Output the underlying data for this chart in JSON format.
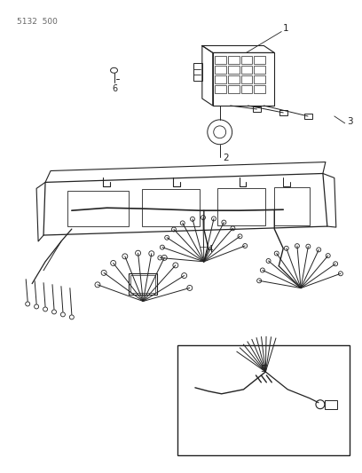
{
  "page_label": "5132  500",
  "background_color": "#ffffff",
  "line_color": "#222222",
  "fig_width": 4.08,
  "fig_height": 5.33,
  "dpi": 100
}
